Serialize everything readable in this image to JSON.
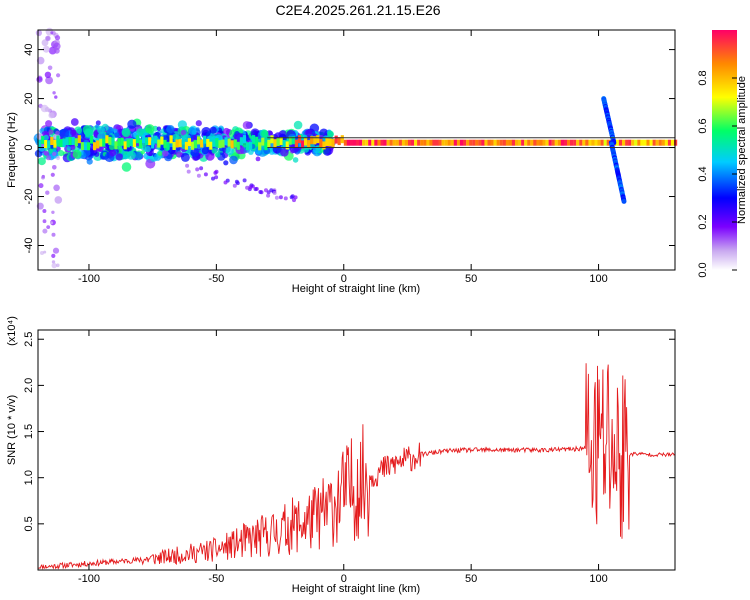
{
  "title": "C2E4.2025.261.21.15.E26",
  "colors": {
    "background": "#ffffff",
    "snr_line": "#e41a1c",
    "axis": "#000000",
    "centerline": "#333333"
  },
  "chart_data": [
    {
      "type": "heatmap",
      "title": "C2E4.2025.261.21.15.E26",
      "xlabel": "Height of straight line (km)",
      "ylabel": "Frequency (Hz)",
      "xlim": [
        -120,
        130
      ],
      "ylim": [
        -50,
        48
      ],
      "x_ticks": [
        -100,
        -50,
        0,
        50,
        100
      ],
      "y_ticks": [
        -40,
        -20,
        0,
        20,
        40
      ],
      "colorbar": {
        "label": "Normalized spectral amplitude",
        "range": [
          0,
          1
        ],
        "ticks": [
          "0.0",
          "0.2",
          "0.4",
          "0.6",
          "0.8"
        ],
        "tick_values": [
          0.0,
          0.2,
          0.4,
          0.6,
          0.8
        ],
        "colormap": "rainbow"
      },
      "features": [
        {
          "name": "main-tone",
          "x_range": [
            -120,
            130
          ],
          "frequency_hz": 2,
          "amplitude": 0.95
        },
        {
          "name": "broadband-low",
          "x_range": [
            -120,
            -20
          ],
          "frequency_range_hz": [
            -5,
            10
          ],
          "amplitude": 0.4
        },
        {
          "name": "chirp-up",
          "x_range": [
            102,
            106
          ],
          "frequency_range_hz": [
            2,
            20
          ],
          "amplitude": 0.3
        },
        {
          "name": "chirp-down",
          "x_range": [
            105,
            110
          ],
          "frequency_range_hz": [
            -22,
            2
          ],
          "amplitude": 0.3
        }
      ]
    },
    {
      "type": "line",
      "xlabel": "Height of straight line (km)",
      "ylabel": "SNR (10 * v/v)",
      "scale_label": "(x10⁴)",
      "xlim": [
        -120,
        130
      ],
      "ylim": [
        0,
        2.6
      ],
      "x_ticks": [
        -100,
        -50,
        0,
        50,
        100
      ],
      "y_ticks": [
        0.5,
        1.0,
        1.5,
        2.0,
        2.5
      ],
      "y_tick_labels": [
        "0.5",
        "1.0",
        "1.5",
        "2.0",
        "2.5"
      ],
      "series": [
        {
          "name": "SNR",
          "x": [
            -120,
            -110,
            -100,
            -90,
            -80,
            -70,
            -60,
            -50,
            -45,
            -40,
            -35,
            -30,
            -25,
            -20,
            -15,
            -10,
            -5,
            0,
            5,
            10,
            15,
            20,
            25,
            30,
            40,
            50,
            60,
            70,
            80,
            90,
            95,
            100,
            103,
            105,
            107,
            110,
            115,
            120,
            130
          ],
          "values": [
            0.03,
            0.05,
            0.07,
            0.09,
            0.11,
            0.14,
            0.18,
            0.22,
            0.26,
            0.3,
            0.34,
            0.38,
            0.42,
            0.48,
            0.52,
            0.58,
            0.68,
            0.82,
            0.92,
            1.0,
            1.08,
            1.15,
            1.2,
            1.25,
            1.29,
            1.3,
            1.3,
            1.3,
            1.3,
            1.31,
            1.32,
            1.3,
            1.4,
            1.4,
            1.2,
            1.25,
            1.26,
            1.25,
            1.25
          ]
        }
      ]
    }
  ]
}
